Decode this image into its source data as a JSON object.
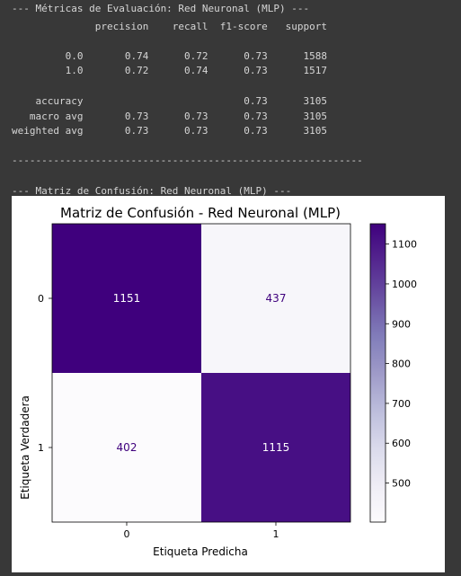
{
  "report": {
    "header": "--- Métricas de Evaluación: Red Neuronal (MLP) ---",
    "columns": "              precision    recall  f1-score   support",
    "rows": [
      "         0.0       0.74      0.72      0.73      1588",
      "         1.0       0.72      0.74      0.73      1517",
      "    accuracy                           0.73      3105",
      "   macro avg       0.73      0.73      0.73      3105",
      "weighted avg       0.73      0.73      0.73      3105"
    ],
    "separator": "-----------------------------------------------------------",
    "cm_header": "--- Matriz de Confusión: Red Neuronal (MLP) ---"
  },
  "colors": {
    "output_bg": "#383838",
    "text": "#d6d6d6",
    "dark_cell": "#3f007d",
    "mid_cell": "#4e1a8a",
    "light_cell": "#fcfbfd"
  },
  "chart_data": {
    "type": "heatmap",
    "title": "Matriz de Confusión - Red Neuronal (MLP)",
    "xlabel": "Etiqueta Predicha",
    "ylabel": "Etiqueta Verdadera",
    "x_categories": [
      "0",
      "1"
    ],
    "y_categories": [
      "0",
      "1"
    ],
    "matrix": [
      [
        1151,
        437
      ],
      [
        402,
        1115
      ]
    ],
    "colormap": "Purples",
    "colorbar_range": [
      402,
      1151
    ],
    "colorbar_ticks": [
      500,
      600,
      700,
      800,
      900,
      1000,
      1100
    ]
  }
}
